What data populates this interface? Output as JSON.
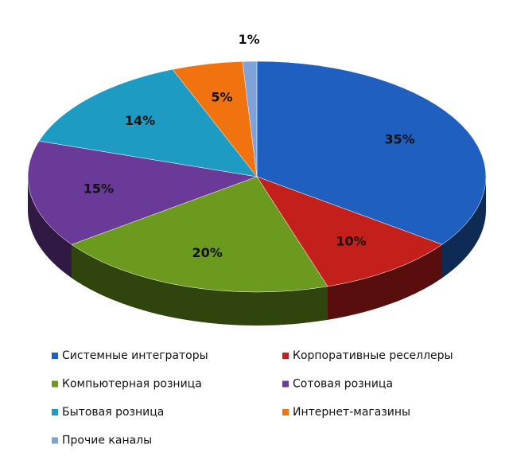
{
  "chart_data": {
    "type": "pie",
    "categories": [
      "Системные интеграторы",
      "Корпоративные реселлеры",
      "Компьютерная розница",
      "Сотовая розница",
      "Бытовая розница",
      "Интернет-магазины",
      "Прочие каналы"
    ],
    "values": [
      35,
      10,
      20,
      15,
      14,
      5,
      1
    ],
    "value_labels": [
      "35%",
      "10%",
      "20%",
      "15%",
      "14%",
      "5%",
      "1%"
    ],
    "colors": [
      "#1f5fbf",
      "#c3201c",
      "#6b9a1e",
      "#6a3a98",
      "#1e9bc2",
      "#f0730f",
      "#7fa3d9"
    ]
  }
}
